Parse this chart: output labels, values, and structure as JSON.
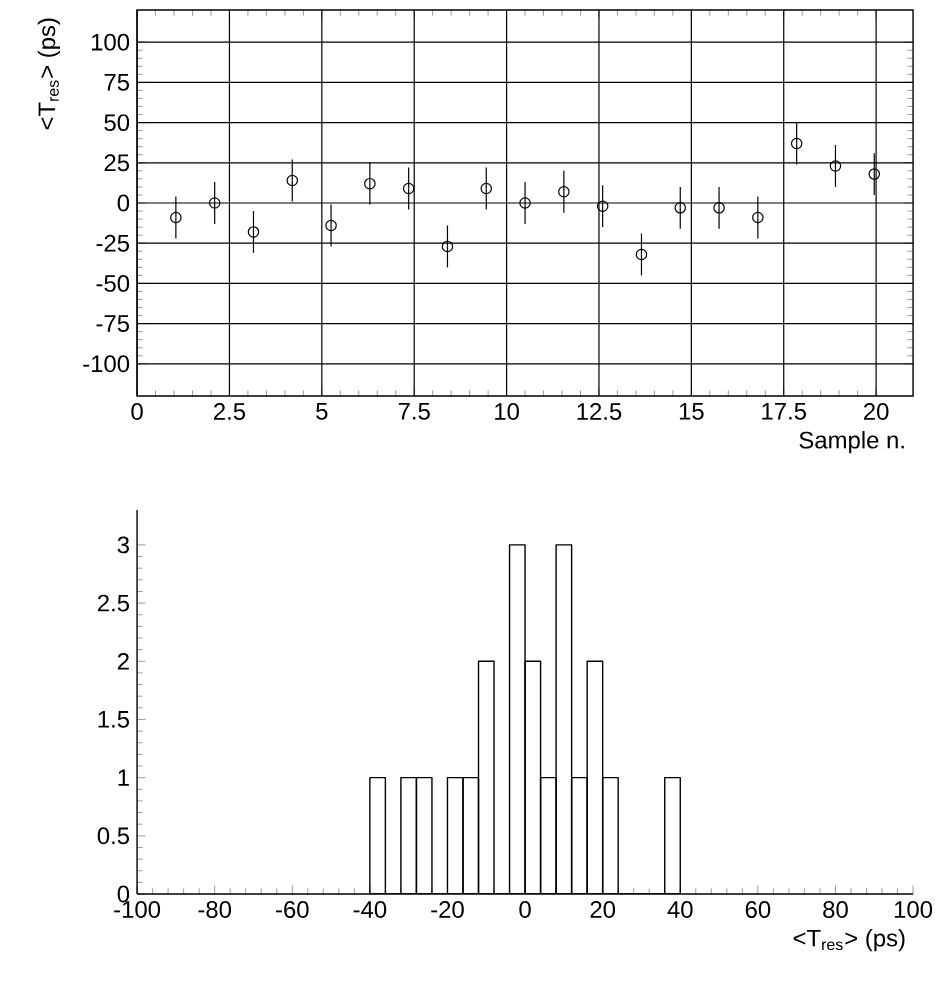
{
  "chart_data": [
    {
      "type": "scatter",
      "xlabel": "Sample n.",
      "ylabel": "<T$_{res}$> (ps)",
      "marker": "circle",
      "color": "#000000",
      "grid": true,
      "x": [
        1.05,
        2.1,
        3.15,
        4.2,
        5.25,
        6.3,
        7.35,
        8.4,
        9.45,
        10.5,
        11.55,
        12.6,
        13.65,
        14.7,
        15.75,
        16.8,
        17.85,
        18.9,
        19.95
      ],
      "values": [
        -9,
        0,
        -18,
        14,
        -14,
        12,
        9,
        -27,
        9,
        0,
        7,
        -2,
        -32,
        -3,
        -3,
        -9,
        37,
        23,
        18
      ],
      "errors": [
        13,
        13,
        13,
        13,
        13,
        13,
        13,
        13,
        13,
        13,
        13,
        13,
        13,
        13,
        13,
        13,
        13,
        13,
        13
      ],
      "xlim": [
        0,
        21
      ],
      "ylim": [
        -120,
        120
      ],
      "xticks": [
        0,
        2.5,
        5,
        7.5,
        10,
        12.5,
        15,
        17.5,
        20
      ],
      "yticks": [
        -100,
        -75,
        -50,
        -25,
        0,
        25,
        50,
        75,
        100
      ]
    },
    {
      "type": "histogram",
      "xlabel": "<T$_{res}$> (ps)",
      "color": "#000000",
      "bins": [
        -40,
        -36,
        -32,
        -28,
        -24,
        -20,
        -16,
        -12,
        -8,
        -4,
        0,
        4,
        8,
        12,
        16,
        20,
        24,
        28,
        32,
        36,
        40
      ],
      "values": [
        1,
        0,
        1,
        1,
        0,
        1,
        1,
        2,
        0,
        3,
        2,
        1,
        3,
        1,
        2,
        1,
        0,
        0,
        0,
        1
      ],
      "xlim": [
        -100,
        100
      ],
      "ylim": [
        0,
        3.3
      ],
      "xticks": [
        -100,
        -80,
        -60,
        -40,
        -20,
        0,
        20,
        40,
        60,
        80,
        100
      ],
      "yticks": [
        0,
        0.5,
        1,
        1.5,
        2,
        2.5,
        3
      ]
    }
  ]
}
